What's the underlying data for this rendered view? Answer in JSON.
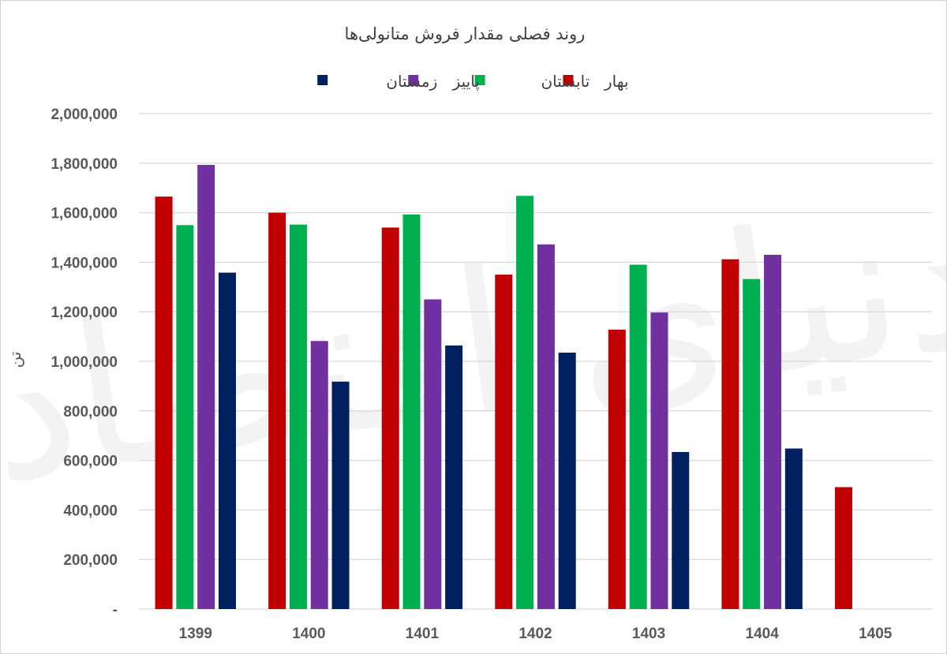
{
  "chart_data": {
    "type": "bar",
    "title": "روند فصلی مقدار فروش متانولی‌ها",
    "ylabel": "تن",
    "xlabel": "",
    "categories": [
      "1399",
      "1400",
      "1401",
      "1402",
      "1403",
      "1404",
      "1405"
    ],
    "ylim": [
      0,
      2000000
    ],
    "yticks": [
      "-",
      "200,000",
      "400,000",
      "600,000",
      "800,000",
      "1,000,000",
      "1,200,000",
      "1,400,000",
      "1,600,000",
      "1,800,000",
      "2,000,000"
    ],
    "grid": true,
    "legend_position": "top",
    "series": [
      {
        "name": "بهار",
        "color": "#c00000",
        "values": [
          1665000,
          1600000,
          1540000,
          1350000,
          1128000,
          1412000,
          492000
        ]
      },
      {
        "name": "تابستان",
        "color": "#00b050",
        "values": [
          1550000,
          1552000,
          1593000,
          1668000,
          1390000,
          1332000,
          null
        ]
      },
      {
        "name": "پاییز",
        "color": "#7030a0",
        "values": [
          1793000,
          1082000,
          1250000,
          1472000,
          1197000,
          1430000,
          null
        ]
      },
      {
        "name": "زمستان",
        "color": "#002060",
        "values": [
          1358000,
          918000,
          1064000,
          1035000,
          634000,
          648000,
          null
        ]
      }
    ],
    "watermark": "دنیای اقتصاد"
  }
}
